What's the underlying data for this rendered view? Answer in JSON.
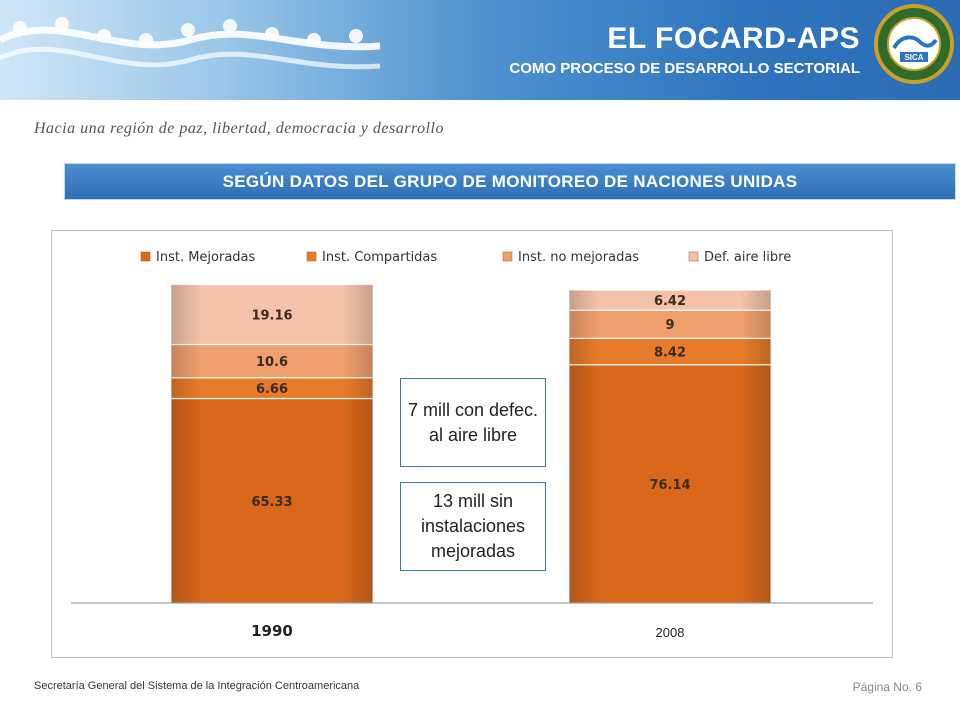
{
  "header": {
    "title": "EL FOCARD-APS",
    "subtitle": "COMO PROCESO DE DESARROLLO SECTORIAL",
    "seal_text": "SICA"
  },
  "tagline": "Hacia una región de paz, libertad, democracia y desarrollo",
  "banner": "SEGÚN DATOS DEL GRUPO DE MONITOREO DE NACIONES UNIDAS",
  "chart_data": {
    "type": "bar",
    "stacked": true,
    "categories": [
      "1990",
      "2008"
    ],
    "series": [
      {
        "name": "Inst. Mejoradas",
        "values": [
          65.33,
          76.14
        ],
        "color": "#d9681a"
      },
      {
        "name": "Inst. Compartidas",
        "values": [
          6.66,
          8.42
        ],
        "color": "#e87b2a"
      },
      {
        "name": "Inst. no mejoradas",
        "values": [
          10.6,
          9
        ],
        "color": "#f0a06d"
      },
      {
        "name": "Def. aire libre",
        "values": [
          19.16,
          6.42
        ],
        "color": "#f3c2a8"
      }
    ],
    "data_labels": [
      [
        "65.33",
        "6.66",
        "10.6",
        "19.16"
      ],
      [
        "76.14",
        "8.42",
        "9",
        "6.42"
      ]
    ],
    "ylim": [
      0,
      100
    ],
    "legend": "top",
    "grid": false
  },
  "notes": {
    "top": "7 mill con defec. al aire libre",
    "bottom": "13 mill sin instalaciones mejoradas"
  },
  "footer": {
    "left": "Secretaría General del Sistema de la Integración Centroamericana",
    "right": "Página No. 6"
  }
}
